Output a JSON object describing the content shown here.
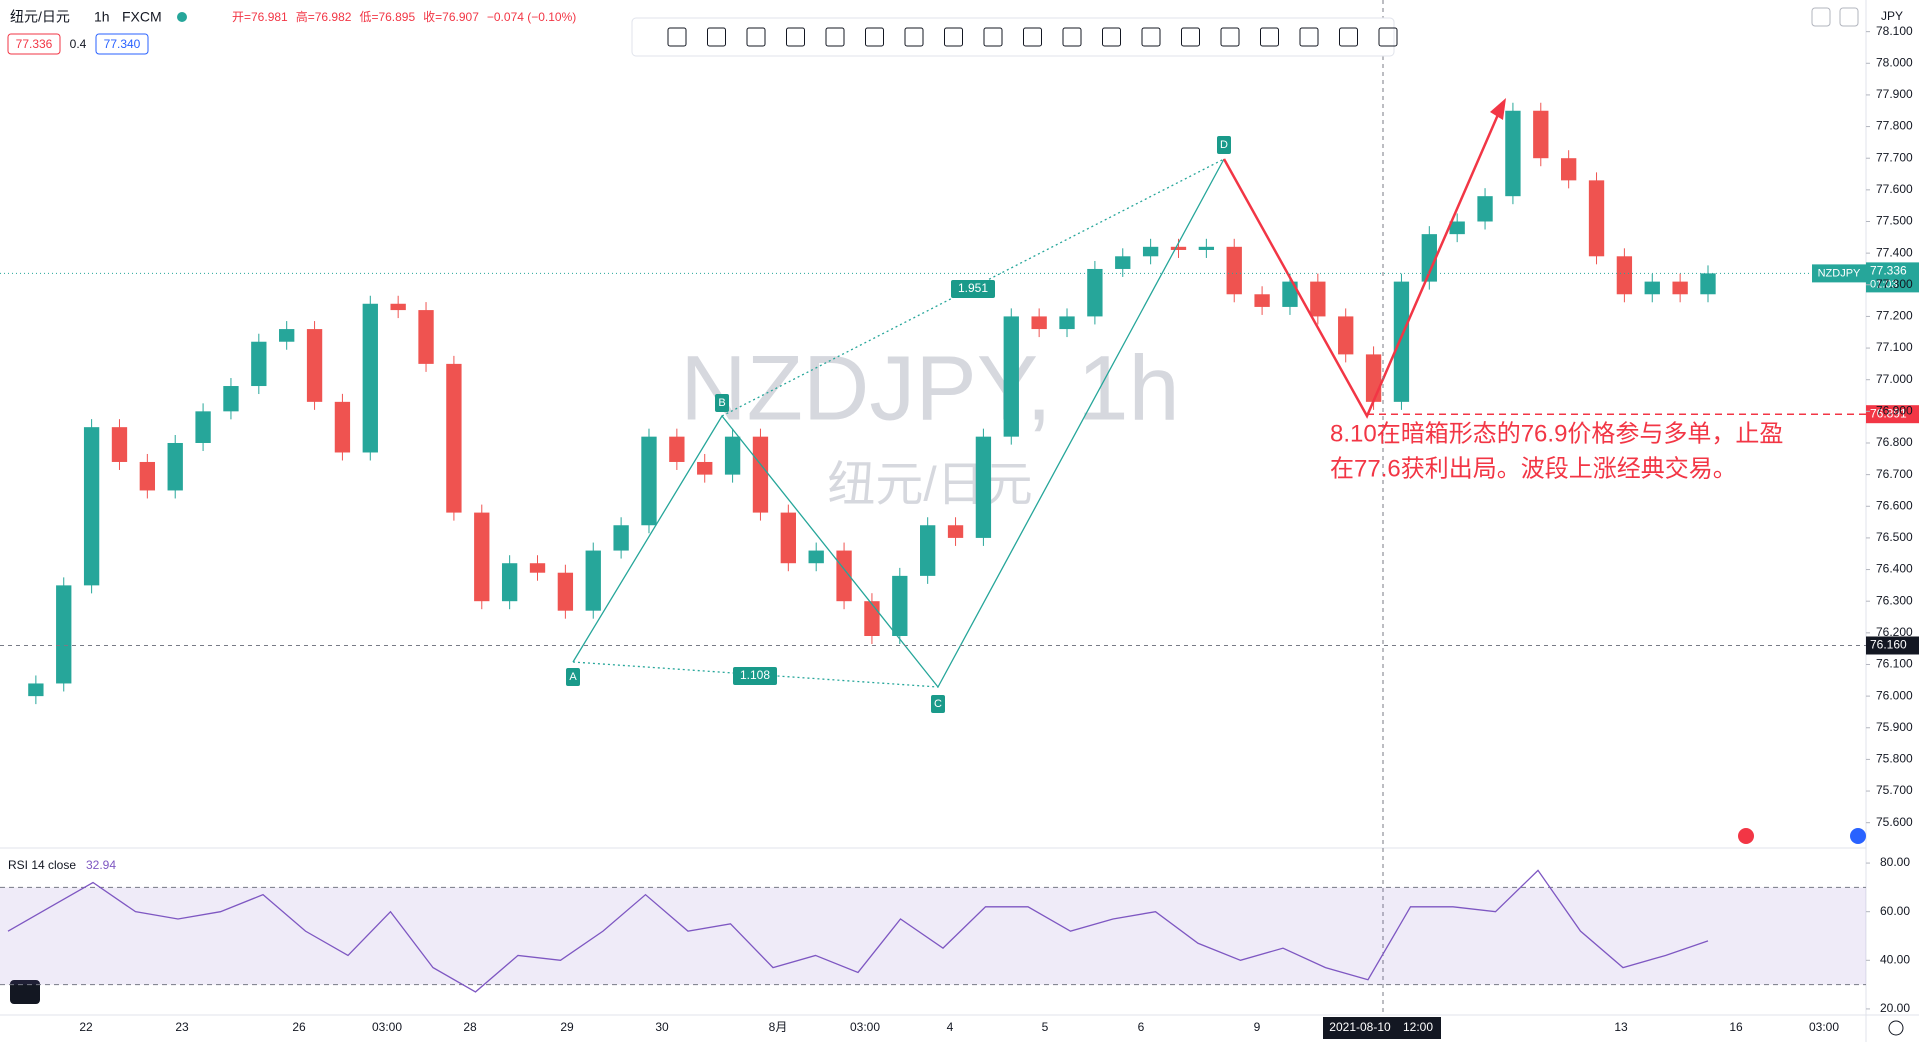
{
  "header": {
    "symbol": "纽元/日元",
    "interval": "1h",
    "source": "FXCM",
    "ohlc": [
      "开=76.981",
      "高=76.982",
      "低=76.895",
      "收=76.907",
      "−0.074 (−0.10%)"
    ]
  },
  "quote": {
    "bid": "77.336",
    "spread": "0.4",
    "ask": "77.340"
  },
  "watermark": {
    "symbol": "NZDJPY, 1h",
    "name": "纽元/日元"
  },
  "price_axis": {
    "currency": "JPY",
    "ylim": [
      75.52,
      78.2
    ],
    "yticks": [
      {
        "value": 75.6,
        "label": "75.600"
      },
      {
        "value": 75.7,
        "label": "75.700"
      },
      {
        "value": 75.8,
        "label": "75.800"
      },
      {
        "value": 75.9,
        "label": "75.900"
      },
      {
        "value": 76.0,
        "label": "76.000"
      },
      {
        "value": 76.1,
        "label": "76.100"
      },
      {
        "value": 76.2,
        "label": "76.200"
      },
      {
        "value": 76.3,
        "label": "76.300"
      },
      {
        "value": 76.4,
        "label": "76.400"
      },
      {
        "value": 76.5,
        "label": "76.500"
      },
      {
        "value": 76.6,
        "label": "76.600"
      },
      {
        "value": 76.7,
        "label": "76.700"
      },
      {
        "value": 76.8,
        "label": "76.800"
      },
      {
        "value": 76.9,
        "label": "76.900"
      },
      {
        "value": 77.0,
        "label": "77.000"
      },
      {
        "value": 77.1,
        "label": "77.100"
      },
      {
        "value": 77.2,
        "label": "77.200"
      },
      {
        "value": 77.3,
        "label": "77.300"
      },
      {
        "value": 77.4,
        "label": "77.400"
      },
      {
        "value": 77.5,
        "label": "77.500"
      },
      {
        "value": 77.6,
        "label": "77.600"
      },
      {
        "value": 77.7,
        "label": "77.700"
      },
      {
        "value": 77.8,
        "label": "77.800"
      },
      {
        "value": 77.9,
        "label": "77.900"
      },
      {
        "value": 78.0,
        "label": "78.000"
      },
      {
        "value": 78.1,
        "label": "78.100"
      }
    ]
  },
  "price_series": {
    "type": "candlestick",
    "up_color": "#26a69a",
    "down_color": "#ef5350",
    "closes": [
      76.0,
      76.04,
      76.35,
      76.85,
      76.74,
      76.65,
      76.8,
      76.9,
      76.98,
      77.12,
      77.16,
      76.93,
      76.77,
      77.24,
      77.22,
      77.05,
      76.58,
      76.3,
      76.42,
      76.39,
      76.27,
      76.46,
      76.54,
      76.82,
      76.74,
      76.7,
      76.82,
      76.58,
      76.42,
      76.46,
      76.3,
      76.19,
      76.38,
      76.54,
      76.5,
      76.82,
      77.2,
      77.16,
      77.2,
      77.35,
      77.39,
      77.42,
      77.41,
      77.42,
      77.27,
      77.23,
      77.31,
      77.2,
      77.08,
      76.93,
      77.31,
      77.46,
      77.5,
      77.58,
      77.85,
      77.7,
      77.63,
      77.39,
      77.27,
      77.31,
      77.27,
      77.336
    ]
  },
  "price_labels": {
    "last": {
      "symbol": "NZDJPY",
      "value": 77.336,
      "countdown": "01:03"
    },
    "order": 76.891,
    "crosshair": {
      "value": 76.16,
      "label": "76.160"
    }
  },
  "pattern": {
    "points": [
      "A",
      "B",
      "C",
      "D"
    ],
    "ratios": [
      1.951,
      1.108
    ]
  },
  "note": [
    "8.10在暗箱形态的76.9价格参与多单，止盈",
    "在77.6获利出局。波段上涨经典交易。"
  ],
  "rsi": {
    "title": "RSI 14 close",
    "value": 32.94,
    "color": "#7e57c2",
    "ylim": [
      17.5,
      86.2
    ],
    "band": [
      30,
      70
    ],
    "yticks": [
      {
        "value": 20,
        "label": "20.00"
      },
      {
        "value": 40,
        "label": "40.00"
      },
      {
        "value": 60,
        "label": "60.00"
      },
      {
        "value": 80,
        "label": "80.00"
      }
    ],
    "values": [
      52,
      62,
      72,
      60,
      57,
      60,
      67,
      52,
      42,
      60,
      37,
      27,
      42,
      40,
      52,
      67,
      52,
      55,
      37,
      42,
      35,
      57,
      45,
      62,
      62,
      52,
      57,
      60,
      47,
      40,
      45,
      37,
      32,
      62,
      62,
      60,
      77,
      52,
      37,
      42,
      48
    ]
  },
  "time_axis": {
    "labels": [
      "22",
      "23",
      "26",
      "03:00",
      "28",
      "29",
      "30",
      "8月",
      "03:00",
      "4",
      "5",
      "6",
      "9",
      "13",
      "16",
      "03:00"
    ],
    "highlight_date": "2021-08-10",
    "highlight_time": "12:00"
  }
}
